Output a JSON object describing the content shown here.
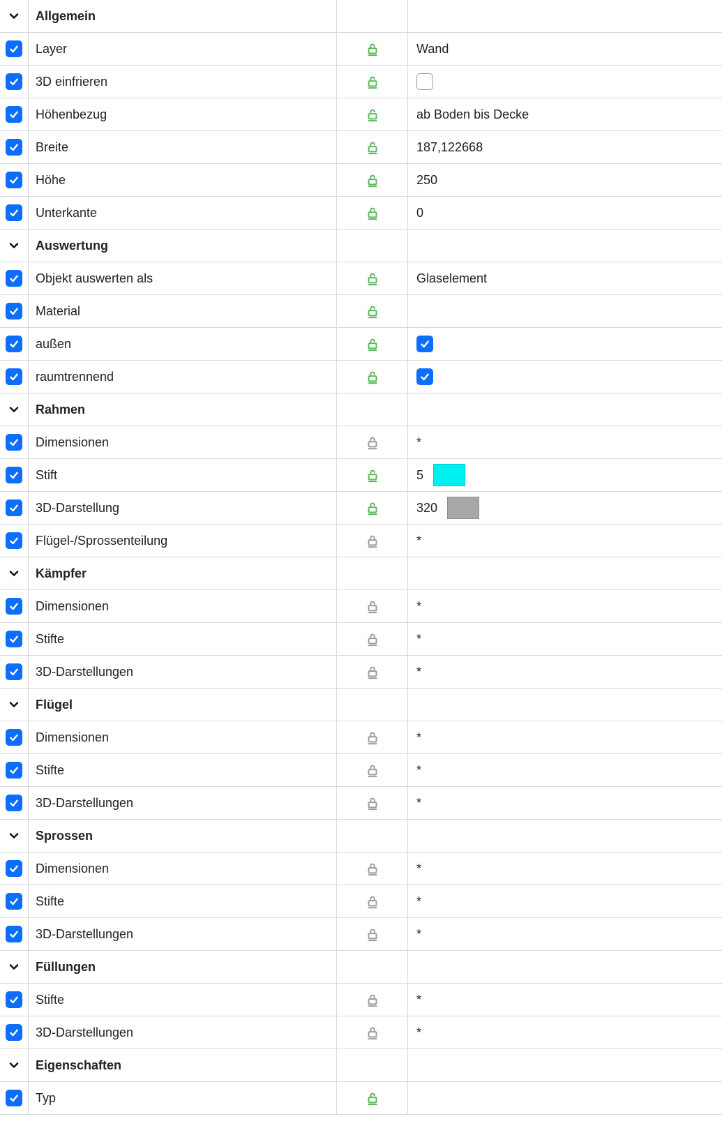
{
  "colors": {
    "checkbox_on_bg": "#0d6efd",
    "checkbox_check": "#ffffff",
    "unlock_color": "#5bb85b",
    "lock_color": "#9e9e9e",
    "chevron_color": "#111111",
    "border_color": "#d9d9d9"
  },
  "rows": [
    {
      "type": "header",
      "label": "Allgemein"
    },
    {
      "type": "prop",
      "checked": true,
      "label": "Layer",
      "lock": "unlocked",
      "value_type": "text",
      "value": "Wand"
    },
    {
      "type": "prop",
      "checked": true,
      "label": "3D einfrieren",
      "lock": "unlocked",
      "value_type": "checkbox",
      "value_checked": false
    },
    {
      "type": "prop",
      "checked": true,
      "label": "Höhenbezug",
      "lock": "unlocked",
      "value_type": "text",
      "value": "ab Boden bis Decke"
    },
    {
      "type": "prop",
      "checked": true,
      "label": "Breite",
      "lock": "unlocked",
      "value_type": "text",
      "value": "187,122668"
    },
    {
      "type": "prop",
      "checked": true,
      "label": "Höhe",
      "lock": "unlocked",
      "value_type": "text",
      "value": "250"
    },
    {
      "type": "prop",
      "checked": true,
      "label": "Unterkante",
      "lock": "unlocked",
      "value_type": "text",
      "value": "0"
    },
    {
      "type": "header",
      "label": "Auswertung"
    },
    {
      "type": "prop",
      "checked": true,
      "label": "Objekt auswerten als",
      "lock": "unlocked",
      "value_type": "text",
      "value": "Glaselement"
    },
    {
      "type": "prop",
      "checked": true,
      "label": "Material",
      "lock": "unlocked",
      "value_type": "text",
      "value": ""
    },
    {
      "type": "prop",
      "checked": true,
      "label": "außen",
      "lock": "unlocked",
      "value_type": "checkbox",
      "value_checked": true
    },
    {
      "type": "prop",
      "checked": true,
      "label": "raumtrennend",
      "lock": "unlocked",
      "value_type": "checkbox",
      "value_checked": true
    },
    {
      "type": "header",
      "label": "Rahmen"
    },
    {
      "type": "prop",
      "checked": true,
      "label": "Dimensionen",
      "lock": "locked",
      "value_type": "text",
      "value": "*"
    },
    {
      "type": "prop",
      "checked": true,
      "label": "Stift",
      "lock": "unlocked",
      "value_type": "swatch",
      "value": "5",
      "swatch_color": "#00f0f0"
    },
    {
      "type": "prop",
      "checked": true,
      "label": "3D-Darstellung",
      "lock": "unlocked",
      "value_type": "swatch",
      "value": "320",
      "swatch_color": "#a8a8a8"
    },
    {
      "type": "prop",
      "checked": true,
      "label": "Flügel-/Sprossenteilung",
      "lock": "locked",
      "value_type": "text",
      "value": "*"
    },
    {
      "type": "header",
      "label": "Kämpfer"
    },
    {
      "type": "prop",
      "checked": true,
      "label": "Dimensionen",
      "lock": "locked",
      "value_type": "text",
      "value": "*"
    },
    {
      "type": "prop",
      "checked": true,
      "label": "Stifte",
      "lock": "locked",
      "value_type": "text",
      "value": "*"
    },
    {
      "type": "prop",
      "checked": true,
      "label": "3D-Darstellungen",
      "lock": "locked",
      "value_type": "text",
      "value": "*"
    },
    {
      "type": "header",
      "label": "Flügel"
    },
    {
      "type": "prop",
      "checked": true,
      "label": "Dimensionen",
      "lock": "locked",
      "value_type": "text",
      "value": "*"
    },
    {
      "type": "prop",
      "checked": true,
      "label": "Stifte",
      "lock": "locked",
      "value_type": "text",
      "value": "*"
    },
    {
      "type": "prop",
      "checked": true,
      "label": "3D-Darstellungen",
      "lock": "locked",
      "value_type": "text",
      "value": "*"
    },
    {
      "type": "header",
      "label": "Sprossen"
    },
    {
      "type": "prop",
      "checked": true,
      "label": "Dimensionen",
      "lock": "locked",
      "value_type": "text",
      "value": "*"
    },
    {
      "type": "prop",
      "checked": true,
      "label": "Stifte",
      "lock": "locked",
      "value_type": "text",
      "value": "*"
    },
    {
      "type": "prop",
      "checked": true,
      "label": "3D-Darstellungen",
      "lock": "locked",
      "value_type": "text",
      "value": "*"
    },
    {
      "type": "header",
      "label": "Füllungen"
    },
    {
      "type": "prop",
      "checked": true,
      "label": "Stifte",
      "lock": "locked",
      "value_type": "text",
      "value": "*"
    },
    {
      "type": "prop",
      "checked": true,
      "label": "3D-Darstellungen",
      "lock": "locked",
      "value_type": "text",
      "value": "*"
    },
    {
      "type": "header",
      "label": "Eigenschaften"
    },
    {
      "type": "prop",
      "checked": true,
      "label": "Typ",
      "lock": "unlocked",
      "value_type": "text",
      "value": ""
    }
  ]
}
